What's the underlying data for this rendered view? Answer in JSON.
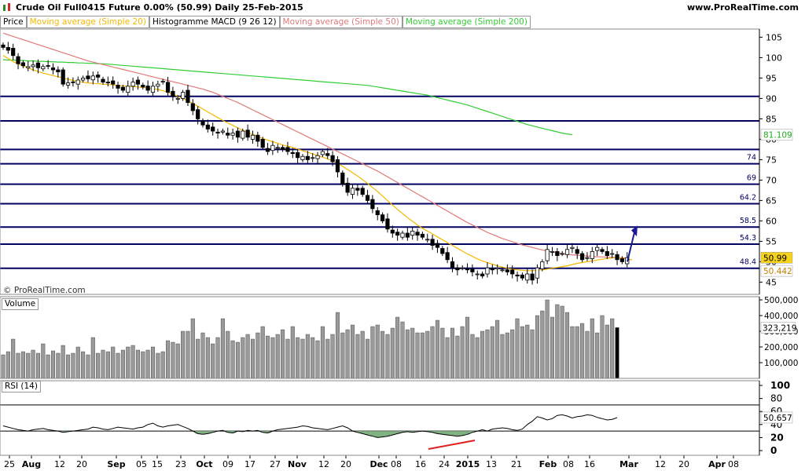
{
  "header": {
    "title": "Crude Oil Full0415 Future   0.00% (50.99)   Daily   25-Feb-2015",
    "site": "www.ProRealTime.com"
  },
  "legend": {
    "price": "Price",
    "ma20": "Moving average (Simple 20)",
    "macd": "Histogramme MACD (9 26 12)",
    "ma50": "Moving average (Simple 50)",
    "ma200": "Moving average (Simple 200)"
  },
  "colors": {
    "ma20": "#f5b800",
    "ma50": "#e07a7a",
    "ma200": "#33cc33",
    "hlines": "#000060",
    "arrow": "#1a1a99",
    "divergence": "#e02020",
    "volume": "#9a9a9a",
    "volume_last": "#000000"
  },
  "watermark": "© ProRealTime.com",
  "panels": {
    "volume_label": "Volume",
    "rsi_label": "RSI (14)"
  },
  "chart_data": [
    {
      "type": "candlestick",
      "title": "Crude Oil Full0415 Future",
      "ylim": [
        42,
        107
      ],
      "y_ticks": [
        45,
        50,
        55,
        60,
        65,
        70,
        75,
        80,
        85,
        90,
        95,
        100,
        105
      ],
      "x_ticks": [
        "25",
        "Aug",
        "12",
        "20",
        "Sep",
        "05",
        "15",
        "23",
        "Oct",
        "09",
        "17",
        "27",
        "Nov",
        "12",
        "20",
        "Dec",
        "08",
        "16",
        "24",
        "2015",
        "13",
        "21",
        "Feb",
        "08",
        "16",
        "Mar",
        "12",
        "20",
        "Apr",
        "08"
      ],
      "horizontal_levels": [
        {
          "value": 90.5,
          "label": ""
        },
        {
          "value": 84.5,
          "label": ""
        },
        {
          "value": 77.5,
          "label": ""
        },
        {
          "value": 74,
          "label": "74"
        },
        {
          "value": 69,
          "label": "69"
        },
        {
          "value": 64.2,
          "label": "64.2"
        },
        {
          "value": 58.5,
          "label": "58.5"
        },
        {
          "value": 54.3,
          "label": "54.3"
        },
        {
          "value": 48.4,
          "label": "48.4"
        }
      ],
      "last_price": "50.99",
      "ma20_last": "50.442",
      "ma200_last": "81.109",
      "closes": [
        102.5,
        101.8,
        100.5,
        98.5,
        98.0,
        97.8,
        98.2,
        97.5,
        97.8,
        98.0,
        97.0,
        96.5,
        93.5,
        93.8,
        94.0,
        94.5,
        95.0,
        94.8,
        95.5,
        95.2,
        94.0,
        93.8,
        93.5,
        92.5,
        92.0,
        93.0,
        94.0,
        93.5,
        92.8,
        92.0,
        93.0,
        93.5,
        94.2,
        91.5,
        90.5,
        90.0,
        91.5,
        89.0,
        87.0,
        85.0,
        83.5,
        82.5,
        82.0,
        81.5,
        82.0,
        81.0,
        81.5,
        80.5,
        82.0,
        80.5,
        81.0,
        79.5,
        78.0,
        77.0,
        78.5,
        78.0,
        77.5,
        77.0,
        76.5,
        75.5,
        75.8,
        75.0,
        75.5,
        76.0,
        77.0,
        76.0,
        74.5,
        72.0,
        69.0,
        67.0,
        68.0,
        67.5,
        66.5,
        65.0,
        63.0,
        61.5,
        60.0,
        58.0,
        57.0,
        56.5,
        57.0,
        56.0,
        57.5,
        56.5,
        56.0,
        55.5,
        54.0,
        53.5,
        52.0,
        50.5,
        48.5,
        48.0,
        48.5,
        48.0,
        47.5,
        47.0,
        46.5,
        48.5,
        48.0,
        48.5,
        48.0,
        47.5,
        47.0,
        46.5,
        46.0,
        47.0,
        45.5,
        48.5,
        50.0,
        53.0,
        52.5,
        51.5,
        52.0,
        53.0,
        53.5,
        52.0,
        50.5,
        51.0,
        52.5,
        53.5,
        52.5,
        51.5,
        52.0,
        50.5,
        50.0,
        50.99
      ],
      "ma20": [
        100.5,
        99.8,
        99.0,
        98.5,
        98.0,
        97.5,
        97.0,
        96.6,
        96.2,
        95.9,
        95.6,
        95.3,
        95.0,
        94.7,
        94.4,
        94.2,
        94.0,
        93.8,
        93.7,
        93.6,
        93.5,
        93.4,
        93.3,
        93.2,
        93.1,
        93.0,
        92.9,
        92.8,
        92.7,
        92.6,
        92.4,
        92.2,
        91.9,
        91.5,
        91.0,
        90.5,
        90.0,
        89.4,
        88.8,
        88.1,
        87.4,
        86.7,
        86.0,
        85.3,
        84.6,
        84.0,
        83.4,
        82.8,
        82.2,
        81.7,
        81.2,
        80.7,
        80.2,
        79.8,
        79.4,
        79.0,
        78.6,
        78.3,
        78.0,
        77.6,
        77.2,
        76.8,
        76.4,
        76.0,
        75.6,
        75.2,
        74.7,
        74.1,
        73.4,
        72.6,
        71.8,
        71.0,
        70.1,
        69.2,
        68.2,
        67.2,
        66.1,
        65.0,
        63.9,
        62.8,
        61.8,
        60.8,
        59.9,
        59.0,
        58.2,
        57.5,
        56.8,
        56.1,
        55.4,
        54.7,
        54.0,
        53.3,
        52.6,
        51.9,
        51.3,
        50.7,
        50.2,
        49.8,
        49.4,
        49.0,
        48.7,
        48.4,
        48.2,
        48.0,
        47.9,
        47.8,
        47.8,
        47.9,
        48.0,
        48.2,
        48.4,
        48.6,
        48.8,
        49.0,
        49.3,
        49.6,
        49.8,
        50.0,
        50.2,
        50.4,
        50.6,
        50.8,
        50.9,
        51.0,
        50.9,
        50.7,
        50.442
      ],
      "ma50": [
        106,
        105.6,
        105.2,
        104.8,
        104.4,
        104.0,
        103.6,
        103.2,
        102.8,
        102.4,
        102.0,
        101.6,
        101.2,
        100.8,
        100.4,
        100.0,
        99.6,
        99.2,
        98.9,
        98.6,
        98.3,
        98.0,
        97.7,
        97.4,
        97.1,
        96.8,
        96.5,
        96.2,
        95.9,
        95.6,
        95.3,
        95.0,
        94.7,
        94.4,
        94.1,
        93.8,
        93.5,
        93.2,
        92.9,
        92.6,
        92.3,
        91.9,
        91.5,
        91.0,
        90.5,
        90.0,
        89.5,
        89.0,
        88.4,
        87.8,
        87.2,
        86.6,
        86.0,
        85.4,
        84.8,
        84.2,
        83.6,
        83.0,
        82.4,
        81.8,
        81.2,
        80.6,
        80.0,
        79.4,
        78.8,
        78.2,
        77.6,
        77.0,
        76.4,
        75.8,
        75.2,
        74.6,
        74.0,
        73.4,
        72.8,
        72.2,
        71.5,
        70.8,
        70.1,
        69.4,
        68.7,
        68.0,
        67.3,
        66.6,
        65.9,
        65.2,
        64.5,
        63.8,
        63.1,
        62.4,
        61.7,
        61.0,
        60.3,
        59.6,
        59.0,
        58.4,
        57.8,
        57.2,
        56.7,
        56.2,
        55.7,
        55.3,
        54.9,
        54.5,
        54.1,
        53.8,
        53.5,
        53.2,
        52.9,
        52.6,
        52.4,
        52.2,
        52.0,
        51.8,
        51.7,
        51.6,
        51.5,
        51.4,
        51.3,
        51.2,
        51.2,
        51.1,
        51.1,
        51.0,
        51.0,
        50.9
      ],
      "ma200": [
        99.5,
        99.4,
        99.4,
        99.3,
        99.3,
        99.2,
        99.2,
        99.1,
        99.1,
        99.0,
        99.0,
        98.9,
        98.9,
        98.8,
        98.8,
        98.7,
        98.7,
        98.6,
        98.6,
        98.5,
        98.5,
        98.4,
        98.3,
        98.2,
        98.1,
        98.0,
        97.9,
        97.8,
        97.7,
        97.6,
        97.5,
        97.4,
        97.3,
        97.2,
        97.1,
        97.0,
        96.9,
        96.8,
        96.7,
        96.6,
        96.5,
        96.4,
        96.3,
        96.2,
        96.1,
        96.0,
        95.9,
        95.8,
        95.7,
        95.6,
        95.5,
        95.4,
        95.3,
        95.2,
        95.1,
        95.0,
        94.9,
        94.8,
        94.7,
        94.6,
        94.5,
        94.4,
        94.3,
        94.2,
        94.1,
        94.0,
        93.9,
        93.8,
        93.7,
        93.6,
        93.5,
        93.4,
        93.3,
        93.2,
        93.0,
        92.8,
        92.6,
        92.4,
        92.2,
        92.0,
        91.8,
        91.6,
        91.4,
        91.2,
        91.0,
        90.8,
        90.5,
        90.2,
        89.9,
        89.6,
        89.3,
        89.0,
        88.7,
        88.4,
        88.0,
        87.6,
        87.2,
        86.8,
        86.4,
        86.0,
        85.6,
        85.2,
        84.8,
        84.4,
        84.0,
        83.6,
        83.3,
        83.0,
        82.7,
        82.4,
        82.1,
        81.8,
        81.5,
        81.3,
        81.109
      ]
    },
    {
      "type": "bar",
      "title": "Volume",
      "ylim": [
        0,
        520000
      ],
      "y_ticks": [
        "500,000",
        "400,000",
        "300,000",
        "200,000",
        "100,000"
      ],
      "last_value": "323,219",
      "values": [
        150000,
        170000,
        250000,
        160000,
        170000,
        160000,
        180000,
        160000,
        220000,
        150000,
        175000,
        160000,
        210000,
        150000,
        160000,
        200000,
        170000,
        150000,
        260000,
        160000,
        180000,
        170000,
        200000,
        160000,
        180000,
        200000,
        210000,
        180000,
        170000,
        180000,
        200000,
        160000,
        170000,
        240000,
        230000,
        220000,
        300000,
        300000,
        380000,
        250000,
        290000,
        260000,
        220000,
        260000,
        380000,
        300000,
        240000,
        230000,
        260000,
        280000,
        250000,
        290000,
        330000,
        270000,
        260000,
        280000,
        310000,
        250000,
        330000,
        260000,
        250000,
        280000,
        260000,
        240000,
        330000,
        250000,
        280000,
        420000,
        290000,
        310000,
        340000,
        280000,
        300000,
        250000,
        330000,
        340000,
        300000,
        280000,
        320000,
        390000,
        360000,
        310000,
        320000,
        290000,
        290000,
        300000,
        330000,
        370000,
        320000,
        260000,
        320000,
        270000,
        330000,
        390000,
        280000,
        260000,
        300000,
        310000,
        330000,
        370000,
        280000,
        290000,
        310000,
        380000,
        330000,
        340000,
        310000,
        400000,
        430000,
        500000,
        390000,
        470000,
        460000,
        420000,
        330000,
        330000,
        350000,
        300000,
        380000,
        290000,
        400000,
        340000,
        380000,
        323219
      ]
    },
    {
      "type": "line",
      "title": "RSI (14)",
      "ylim": [
        0,
        100
      ],
      "y_ticks": [
        100,
        80,
        60,
        40,
        20,
        0
      ],
      "levels": [
        70,
        30
      ],
      "last_value": "50.657",
      "values": [
        38,
        36,
        34,
        32,
        31,
        30,
        32,
        33,
        34,
        32,
        31,
        30,
        28,
        29,
        30,
        31,
        32,
        33,
        36,
        35,
        33,
        32,
        34,
        36,
        35,
        34,
        33,
        35,
        36,
        40,
        42,
        38,
        36,
        38,
        39,
        40,
        37,
        34,
        30,
        26,
        25,
        26,
        28,
        30,
        31,
        28,
        27,
        30,
        29,
        31,
        30,
        31,
        28,
        27,
        30,
        32,
        33,
        34,
        35,
        36,
        38,
        37,
        35,
        34,
        33,
        32,
        34,
        36,
        38,
        35,
        30,
        28,
        26,
        24,
        22,
        20,
        21,
        22,
        24,
        26,
        28,
        29,
        28,
        29,
        30,
        29,
        28,
        26,
        25,
        24,
        23,
        22,
        23,
        25,
        28,
        30,
        32,
        30,
        33,
        34,
        35,
        34,
        32,
        31,
        33,
        40,
        45,
        52,
        50,
        47,
        49,
        54,
        55,
        53,
        50,
        52,
        53,
        55,
        54,
        51,
        49,
        47,
        48,
        50.657
      ]
    }
  ]
}
